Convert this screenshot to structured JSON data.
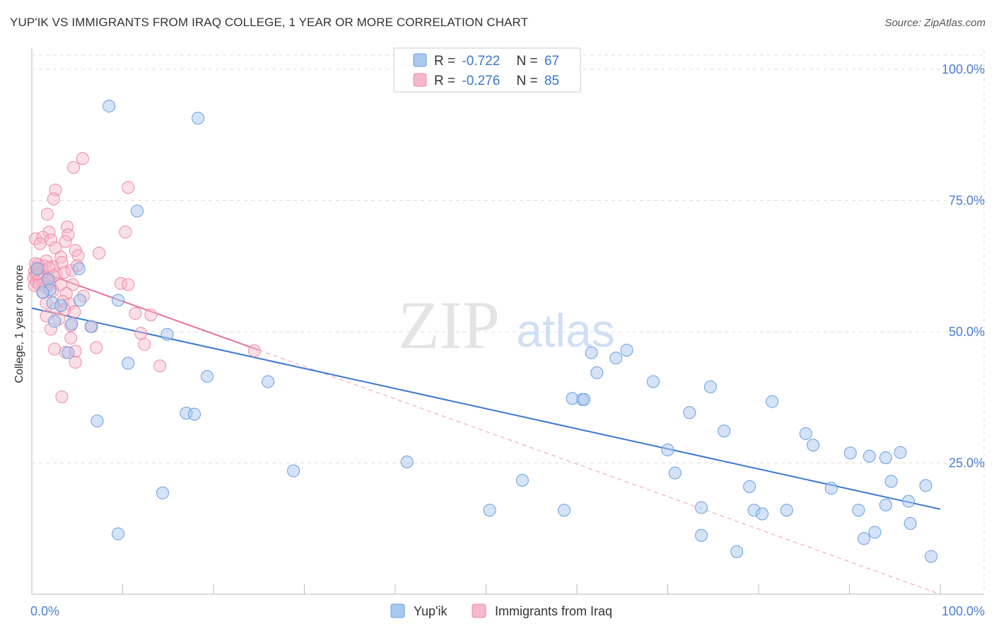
{
  "title": "YUP'IK VS IMMIGRANTS FROM IRAQ COLLEGE, 1 YEAR OR MORE CORRELATION CHART",
  "source": "Source: ZipAtlas.com",
  "watermark": {
    "zip": "ZIP",
    "atlas": "atlas"
  },
  "colors": {
    "blue_fill": "#a9c8f0",
    "blue_stroke": "#6a9fe0",
    "blue_line": "#3a78d0",
    "pink_fill": "#f6b8ca",
    "pink_stroke": "#ee8aa8",
    "pink_line": "#e8709a",
    "grid": "#dddddd",
    "tick_text": "#4a7fd4"
  },
  "chart_data": {
    "type": "scatter",
    "title": "YUP'IK VS IMMIGRANTS FROM IRAQ COLLEGE, 1 YEAR OR MORE CORRELATION CHART",
    "xlabel": "",
    "ylabel": "College, 1 year or more",
    "xlim": [
      0,
      100
    ],
    "ylim": [
      0,
      100
    ],
    "x_tick_labels": [
      "0.0%",
      "100.0%"
    ],
    "y_tick_labels": [
      "25.0%",
      "50.0%",
      "75.0%",
      "100.0%"
    ],
    "y_ticks": [
      25,
      50,
      75,
      100
    ],
    "legend": [
      {
        "name": "Yup'ik",
        "r_label": "R =",
        "r_value": "-0.722",
        "n_label": "N =",
        "n_value": "67"
      },
      {
        "name": "Immigrants from Iraq",
        "r_label": "R =",
        "r_value": "-0.276",
        "n_label": "N =",
        "n_value": "85"
      }
    ],
    "series": [
      {
        "name": "Yup'ik",
        "trend": {
          "x": [
            0,
            100
          ],
          "y": [
            54.5,
            16.2
          ]
        },
        "points": [
          [
            8.5,
            93
          ],
          [
            18.3,
            90.7
          ],
          [
            11.6,
            73
          ],
          [
            1.8,
            60
          ],
          [
            2.0,
            58
          ],
          [
            1.2,
            57.5
          ],
          [
            5.2,
            62
          ],
          [
            2.3,
            55.5
          ],
          [
            3.2,
            55
          ],
          [
            5.3,
            56
          ],
          [
            0.6,
            62
          ],
          [
            6.5,
            51
          ],
          [
            2.5,
            52
          ],
          [
            4.4,
            51.5
          ],
          [
            9.5,
            56
          ],
          [
            4.0,
            46
          ],
          [
            14.9,
            49.5
          ],
          [
            10.6,
            44
          ],
          [
            19.3,
            41.5
          ],
          [
            26.0,
            40.5
          ],
          [
            17.0,
            34.5
          ],
          [
            17.9,
            34.3
          ],
          [
            7.2,
            33
          ],
          [
            14.4,
            19.3
          ],
          [
            9.5,
            11.5
          ],
          [
            28.8,
            23.5
          ],
          [
            41.3,
            25.2
          ],
          [
            50.4,
            16
          ],
          [
            54.0,
            21.7
          ],
          [
            58.6,
            16
          ],
          [
            60.6,
            37.1
          ],
          [
            60.8,
            37.1
          ],
          [
            61.6,
            46
          ],
          [
            62.2,
            42.2
          ],
          [
            64.3,
            45
          ],
          [
            68.4,
            40.5
          ],
          [
            70.0,
            27.5
          ],
          [
            70.8,
            23.1
          ],
          [
            72.4,
            34.6
          ],
          [
            73.7,
            16.5
          ],
          [
            73.7,
            11.2
          ],
          [
            74.7,
            39.5
          ],
          [
            76.2,
            31.1
          ],
          [
            77.6,
            8.1
          ],
          [
            79.0,
            20.5
          ],
          [
            79.5,
            16
          ],
          [
            80.4,
            15.3
          ],
          [
            81.5,
            36.7
          ],
          [
            83.1,
            16
          ],
          [
            85.2,
            30.6
          ],
          [
            86.0,
            28.4
          ],
          [
            88.0,
            20.2
          ],
          [
            90.1,
            26.9
          ],
          [
            91.0,
            16
          ],
          [
            91.6,
            10.6
          ],
          [
            92.2,
            26.3
          ],
          [
            94.0,
            17
          ],
          [
            94.0,
            26
          ],
          [
            94.6,
            21.5
          ],
          [
            95.6,
            27
          ],
          [
            96.7,
            13.5
          ],
          [
            98.4,
            20.7
          ],
          [
            99.0,
            7.2
          ],
          [
            92.8,
            11.8
          ],
          [
            96.5,
            17.7
          ],
          [
            65.5,
            46.5
          ],
          [
            59.5,
            37.3
          ]
        ]
      },
      {
        "name": "Immigrants from Iraq",
        "trend": {
          "x": [
            0,
            25
          ],
          "y": [
            62,
            46.5
          ]
        },
        "dashed_trend": {
          "x": [
            0,
            100
          ],
          "y": [
            62,
            0
          ]
        },
        "points": [
          [
            5.6,
            83
          ],
          [
            4.6,
            81.3
          ],
          [
            10.6,
            77.5
          ],
          [
            2.6,
            77
          ],
          [
            2.4,
            75.3
          ],
          [
            1.7,
            72.4
          ],
          [
            3.9,
            70
          ],
          [
            10.3,
            69
          ],
          [
            1.9,
            69
          ],
          [
            4.0,
            68.5
          ],
          [
            0.4,
            67.7
          ],
          [
            1.2,
            68
          ],
          [
            2.1,
            67.5
          ],
          [
            3.7,
            67.2
          ],
          [
            0.9,
            66.8
          ],
          [
            2.6,
            66
          ],
          [
            4.8,
            65.5
          ],
          [
            7.4,
            65
          ],
          [
            3.2,
            64.2
          ],
          [
            5.1,
            64.5
          ],
          [
            1.6,
            63.5
          ],
          [
            3.3,
            63.2
          ],
          [
            0.7,
            62.8
          ],
          [
            1.4,
            62.5
          ],
          [
            2.3,
            62.4
          ],
          [
            0.5,
            62.2
          ],
          [
            0.8,
            62
          ],
          [
            1.1,
            61.8
          ],
          [
            0.3,
            61.5
          ],
          [
            0.6,
            61.2
          ],
          [
            1.0,
            61
          ],
          [
            0.4,
            60.8
          ],
          [
            0.7,
            60.6
          ],
          [
            1.5,
            60.4
          ],
          [
            0.2,
            60.2
          ],
          [
            0.9,
            60
          ],
          [
            2.7,
            61
          ],
          [
            3.6,
            61.3
          ],
          [
            4.4,
            61.7
          ],
          [
            1.8,
            59.8
          ],
          [
            0.5,
            59.5
          ],
          [
            1.2,
            59.3
          ],
          [
            2.0,
            59
          ],
          [
            0.3,
            58.8
          ],
          [
            3.2,
            59
          ],
          [
            4.5,
            59
          ],
          [
            9.8,
            59.2
          ],
          [
            10.6,
            59
          ],
          [
            1.3,
            57.5
          ],
          [
            2.3,
            57.8
          ],
          [
            3.8,
            57.3
          ],
          [
            5.7,
            56.8
          ],
          [
            1.6,
            55.5
          ],
          [
            3.4,
            55.8
          ],
          [
            4.2,
            55.3
          ],
          [
            2.7,
            54.5
          ],
          [
            3.6,
            54.2
          ],
          [
            4.7,
            53.8
          ],
          [
            11.4,
            53.5
          ],
          [
            13.1,
            53.2
          ],
          [
            1.6,
            53
          ],
          [
            3.0,
            52.5
          ],
          [
            6.6,
            51
          ],
          [
            4.3,
            51.2
          ],
          [
            2.1,
            50.5
          ],
          [
            12.0,
            49.7
          ],
          [
            4.3,
            48.8
          ],
          [
            12.4,
            47.6
          ],
          [
            7.1,
            47
          ],
          [
            2.5,
            46.7
          ],
          [
            3.7,
            46.1
          ],
          [
            4.8,
            46.3
          ],
          [
            24.5,
            46.4
          ],
          [
            4.8,
            44.2
          ],
          [
            14.1,
            43.5
          ],
          [
            3.3,
            37.6
          ],
          [
            1.3,
            60
          ],
          [
            2.0,
            59.5
          ],
          [
            0.8,
            59
          ],
          [
            1.5,
            58.5
          ],
          [
            0.6,
            61
          ],
          [
            1.9,
            62.2
          ],
          [
            2.4,
            60.6
          ],
          [
            0.4,
            63
          ],
          [
            5.0,
            62.6
          ]
        ]
      }
    ]
  }
}
